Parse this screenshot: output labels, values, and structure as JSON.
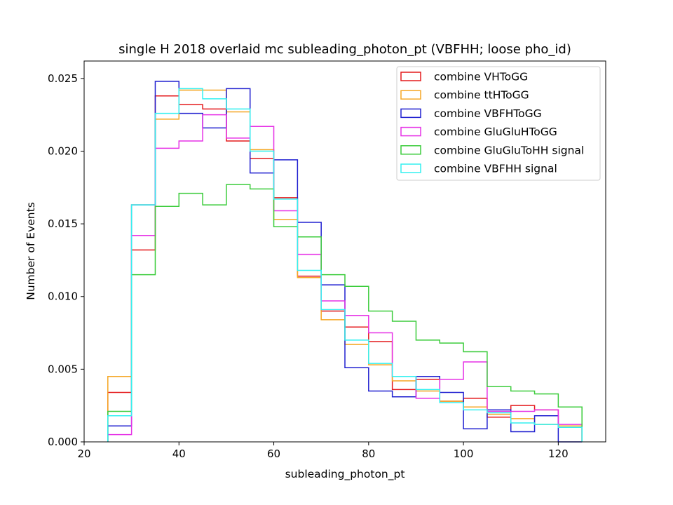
{
  "chart_data": {
    "type": "step",
    "title": "single H 2018 overlaid mc subleading_photon_pt (VBFHH; loose pho_id)",
    "xlabel": "subleading_photon_pt",
    "ylabel": "Number of Events",
    "xlim": [
      20,
      130
    ],
    "ylim": [
      0,
      0.0262
    ],
    "xticks": [
      20,
      40,
      60,
      80,
      100,
      120
    ],
    "yticks": [
      0.0,
      0.005,
      0.01,
      0.015,
      0.02,
      0.025
    ],
    "ytick_labels": [
      "0.000",
      "0.005",
      "0.010",
      "0.015",
      "0.020",
      "0.025"
    ],
    "bin_edges": [
      25,
      30,
      35,
      40,
      45,
      50,
      55,
      60,
      65,
      70,
      75,
      80,
      85,
      90,
      95,
      100,
      105,
      110,
      115,
      120,
      125
    ],
    "grid": false,
    "legend_position": "top-right",
    "series": [
      {
        "name": "combine VHToGG",
        "color": "#e41a1c",
        "values": [
          0.0034,
          0.0132,
          0.0238,
          0.0232,
          0.0229,
          0.0207,
          0.0195,
          0.0168,
          0.0114,
          0.009,
          0.0079,
          0.0069,
          0.0036,
          0.0043,
          0.0028,
          0.003,
          0.0017,
          0.0025,
          0.0022,
          0.0011
        ]
      },
      {
        "name": "combine ttHToGG",
        "color": "#f5a623",
        "values": [
          0.0045,
          0.0163,
          0.0222,
          0.0242,
          0.0242,
          0.0227,
          0.0201,
          0.0153,
          0.0113,
          0.0084,
          0.0067,
          0.0053,
          0.0042,
          0.0035,
          0.0028,
          0.0024,
          0.0019,
          0.0016,
          0.0012,
          0.0011
        ]
      },
      {
        "name": "combine VBFHToGG",
        "color": "#2020d0",
        "values": [
          0.0011,
          0.0163,
          0.0248,
          0.0226,
          0.0216,
          0.0243,
          0.0185,
          0.0194,
          0.0151,
          0.0108,
          0.0051,
          0.0035,
          0.0031,
          0.0045,
          0.0034,
          0.0009,
          0.0022,
          0.0007,
          0.0018,
          0.0
        ]
      },
      {
        "name": "combine GluGluHToGG",
        "color": "#e632e6",
        "values": [
          0.0005,
          0.0142,
          0.0202,
          0.0207,
          0.0225,
          0.0209,
          0.0217,
          0.0159,
          0.0129,
          0.0097,
          0.0087,
          0.0075,
          0.0045,
          0.003,
          0.0043,
          0.0055,
          0.0021,
          0.0021,
          0.0022,
          0.0012
        ]
      },
      {
        "name": "combine GluGluToHH signal",
        "color": "#3ccc3c",
        "values": [
          0.0021,
          0.0115,
          0.0162,
          0.0171,
          0.0163,
          0.0177,
          0.0174,
          0.0148,
          0.0141,
          0.0115,
          0.0107,
          0.009,
          0.0083,
          0.007,
          0.0068,
          0.0062,
          0.0038,
          0.0035,
          0.0033,
          0.0024
        ]
      },
      {
        "name": "combine VBFHH signal",
        "color": "#33f0f0",
        "values": [
          0.0018,
          0.0163,
          0.0226,
          0.0243,
          0.0236,
          0.0229,
          0.02,
          0.0167,
          0.0118,
          0.0091,
          0.007,
          0.0054,
          0.0045,
          0.0036,
          0.0027,
          0.0022,
          0.002,
          0.0013,
          0.0012,
          0.001
        ]
      }
    ]
  }
}
